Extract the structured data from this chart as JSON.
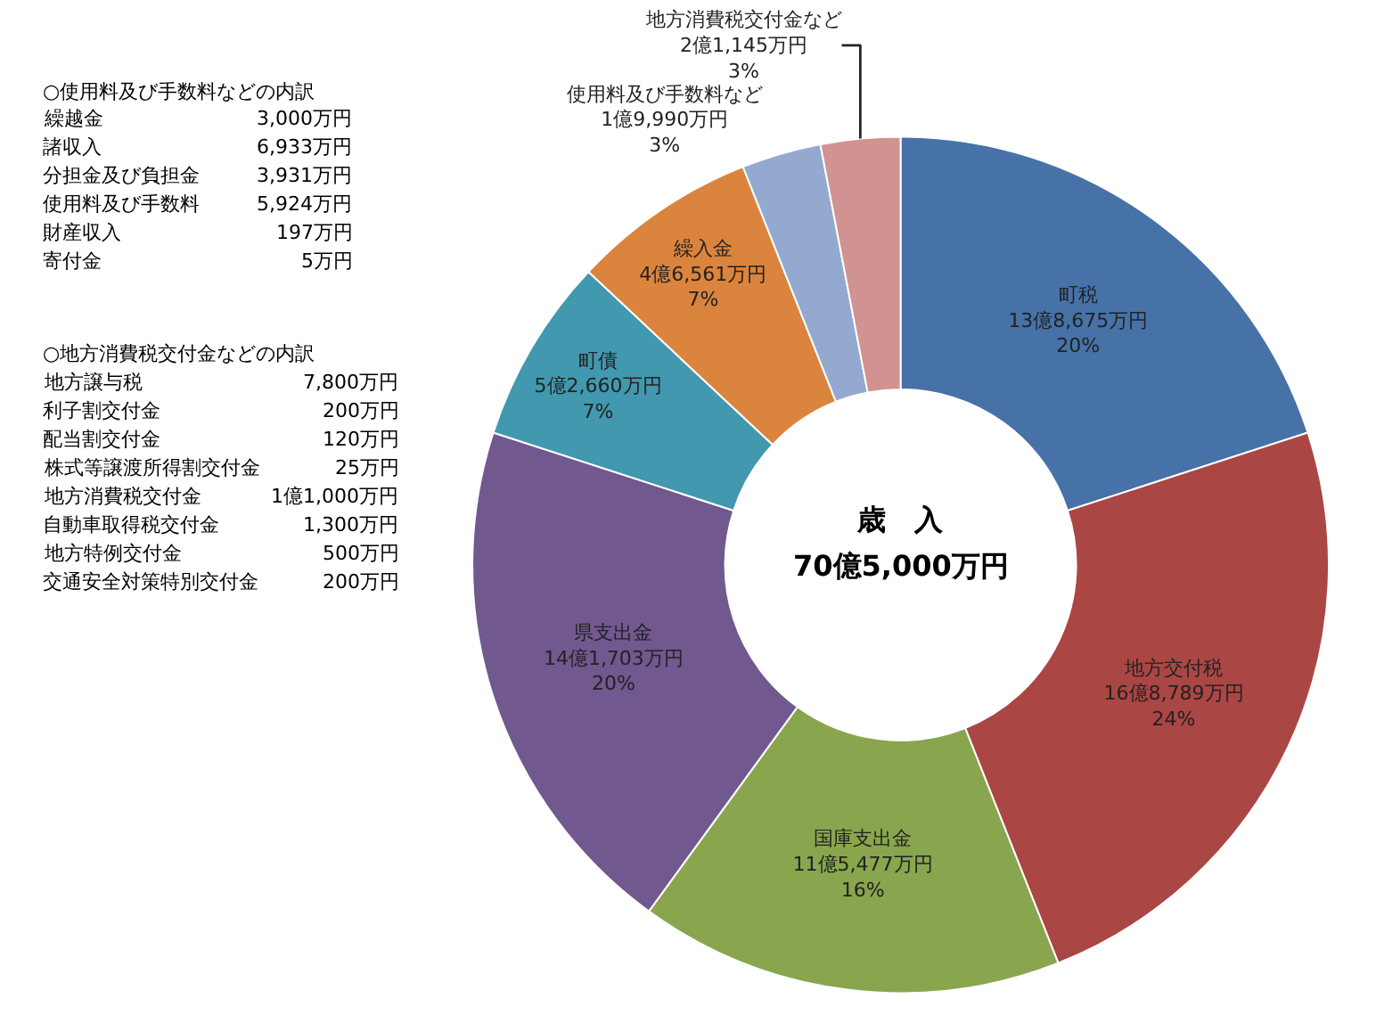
{
  "chart_data": {
    "type": "donut",
    "title": "歳　入",
    "subtitle": "70億5,000万円",
    "categories": [
      "町税",
      "地方交付税",
      "国庫支出金",
      "県支出金",
      "町債",
      "繰入金",
      "使用料及び手数料など",
      "地方消費税交付金など"
    ],
    "values": [
      20,
      24,
      16,
      20,
      7,
      7,
      3,
      3
    ],
    "value_labels": [
      "13億8,675万円\n20%",
      "16億8,789万円\n24%",
      "11億5,477万円\n16%",
      "14億1,703万円\n20%",
      "5億2,660万円\n7%",
      "4億6,561万円\n7%",
      "1億9,990万円\n3%",
      "2億1,145万円\n3%"
    ],
    "colors": [
      "#4672a8",
      "#aa4644",
      "#89a54e",
      "#71588f",
      "#4198af",
      "#db843d",
      "#93a9cf",
      "#d19392"
    ],
    "annotations": [
      "○使用料及び手数料などの内訳",
      "繰越金 3,000万円",
      "諸収入 6,933万円",
      "分担金及び負担金 3,931万円",
      "使用料及び手数料 5,924万円",
      "財産収入 197万円",
      "寄付金 5万円",
      "○地方消費税交付金などの内訳",
      "地方譲与税 7,800万円",
      "利子割交付金 200万円",
      "配当割交付金 120万円",
      "株式等譲渡所得割交付金 25万円",
      "地方消費税交付金 1億1,000万円",
      "自動車取得税交付金 1,300万円",
      "地方特例交付金 500万円",
      "交通安全対策特別交付金 200万円"
    ],
    "legend": false
  }
}
